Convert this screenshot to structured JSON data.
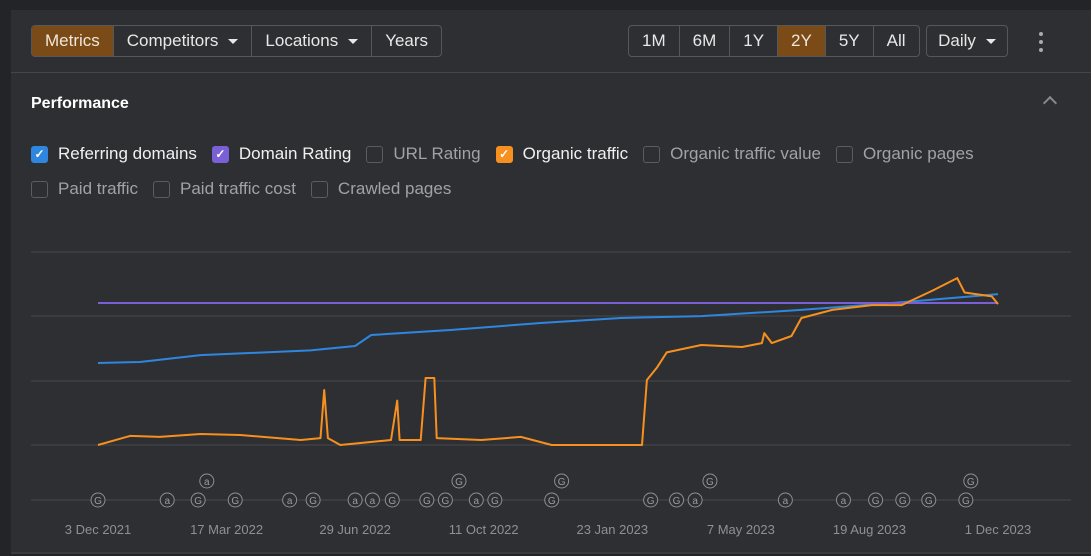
{
  "toolbar": {
    "tabs": [
      {
        "label": "Metrics",
        "active": true
      },
      {
        "label": "Competitors",
        "dropdown": true
      },
      {
        "label": "Locations",
        "dropdown": true
      },
      {
        "label": "Years"
      }
    ],
    "ranges": [
      {
        "label": "1M"
      },
      {
        "label": "6M"
      },
      {
        "label": "1Y"
      },
      {
        "label": "2Y",
        "active": true
      },
      {
        "label": "5Y"
      },
      {
        "label": "All"
      }
    ],
    "interval": "Daily",
    "more_icon": "kebab-icon"
  },
  "section": {
    "title": "Performance",
    "collapse_icon": "chevron-up-icon"
  },
  "metrics": [
    {
      "label": "Referring domains",
      "checked": true,
      "color": "#2f86de"
    },
    {
      "label": "Domain Rating",
      "checked": true,
      "color": "#7b5fd6"
    },
    {
      "label": "URL Rating",
      "checked": false
    },
    {
      "label": "Organic traffic",
      "checked": true,
      "color": "#f7901e"
    },
    {
      "label": "Organic traffic value",
      "checked": false
    },
    {
      "label": "Organic pages",
      "checked": false
    },
    {
      "label": "Paid traffic",
      "checked": false
    },
    {
      "label": "Paid traffic cost",
      "checked": false
    },
    {
      "label": "Crawled pages",
      "checked": false
    }
  ],
  "accent": "#7a4b16",
  "chart_data": {
    "type": "line",
    "grid": true,
    "y_axis_labels": false,
    "note_scale": "relative 0-100",
    "x_ticks": [
      "3 Dec 2021",
      "17 Mar 2022",
      "29 Jun 2022",
      "11 Oct 2022",
      "23 Jan 2023",
      "7 May 2023",
      "19 Aug 2023",
      "1 Dec 2023"
    ],
    "x_range": [
      "2021-12-03",
      "2023-12-01"
    ],
    "ylim": [
      0,
      100
    ],
    "series": [
      {
        "name": "Referring domains",
        "color": "#2f86de",
        "points": [
          [
            "2021-12-03",
            42.5
          ],
          [
            "2022-01-06",
            43
          ],
          [
            "2022-02-24",
            46.6
          ],
          [
            "2022-05-24",
            49
          ],
          [
            "2022-06-29",
            51.3
          ],
          [
            "2022-07-12",
            57
          ],
          [
            "2022-09-14",
            59.6
          ],
          [
            "2022-11-26",
            63.2
          ],
          [
            "2023-01-30",
            65.8
          ],
          [
            "2023-04-05",
            66.8
          ],
          [
            "2023-06-25",
            70
          ],
          [
            "2023-09-14",
            74
          ],
          [
            "2023-12-01",
            78.2
          ]
        ]
      },
      {
        "name": "Domain Rating",
        "color": "#7b5fd6",
        "points": [
          [
            "2021-12-03",
            73.6
          ],
          [
            "2023-12-01",
            73.6
          ]
        ]
      },
      {
        "name": "Organic traffic",
        "color": "#f7901e",
        "points": [
          [
            "2021-12-03",
            0
          ],
          [
            "2021-12-29",
            4.7
          ],
          [
            "2022-01-22",
            4.2
          ],
          [
            "2022-02-24",
            5.7
          ],
          [
            "2022-03-28",
            5.2
          ],
          [
            "2022-05-16",
            2.6
          ],
          [
            "2022-06-01",
            3.6
          ],
          [
            "2022-06-04",
            28.5
          ],
          [
            "2022-06-07",
            3.6
          ],
          [
            "2022-06-17",
            0
          ],
          [
            "2022-07-28",
            2.6
          ],
          [
            "2022-08-02",
            23
          ],
          [
            "2022-08-04",
            2.6
          ],
          [
            "2022-08-21",
            2.6
          ],
          [
            "2022-08-25",
            34.7
          ],
          [
            "2022-09-01",
            34.7
          ],
          [
            "2022-09-03",
            3.6
          ],
          [
            "2022-10-09",
            2.6
          ],
          [
            "2022-11-10",
            4.2
          ],
          [
            "2022-12-05",
            0
          ],
          [
            "2023-01-14",
            0
          ],
          [
            "2023-02-16",
            0
          ],
          [
            "2023-02-20",
            33.7
          ],
          [
            "2023-02-28",
            40
          ],
          [
            "2023-03-08",
            48
          ],
          [
            "2023-04-05",
            51.8
          ],
          [
            "2023-05-08",
            50.8
          ],
          [
            "2023-05-24",
            52.8
          ],
          [
            "2023-05-26",
            58
          ],
          [
            "2023-06-01",
            52.8
          ],
          [
            "2023-06-17",
            56.5
          ],
          [
            "2023-06-25",
            65.8
          ],
          [
            "2023-07-20",
            70
          ],
          [
            "2023-08-21",
            72.5
          ],
          [
            "2023-09-14",
            72.5
          ],
          [
            "2023-10-09",
            80
          ],
          [
            "2023-10-29",
            86.5
          ],
          [
            "2023-11-04",
            79
          ],
          [
            "2023-11-26",
            77
          ],
          [
            "2023-12-01",
            73
          ]
        ]
      }
    ],
    "annotations": [
      [
        "2021-12-03",
        "G"
      ],
      [
        "2022-01-28",
        "a"
      ],
      [
        "2022-02-22",
        "G"
      ],
      [
        "2022-03-01",
        "a"
      ],
      [
        "2022-03-24",
        "G"
      ],
      [
        "2022-05-07",
        "a"
      ],
      [
        "2022-05-26",
        "G"
      ],
      [
        "2022-06-29",
        "a"
      ],
      [
        "2022-07-13",
        "a"
      ],
      [
        "2022-07-29",
        "G"
      ],
      [
        "2022-08-26",
        "G"
      ],
      [
        "2022-09-10",
        "G"
      ],
      [
        "2022-09-21",
        "G"
      ],
      [
        "2022-10-05",
        "a"
      ],
      [
        "2022-10-20",
        "G"
      ],
      [
        "2022-12-05",
        "G"
      ],
      [
        "2022-12-13",
        "G"
      ],
      [
        "2023-02-23",
        "G"
      ],
      [
        "2023-03-16",
        "G"
      ],
      [
        "2023-03-31",
        "a"
      ],
      [
        "2023-04-12",
        "G"
      ],
      [
        "2023-06-12",
        "a"
      ],
      [
        "2023-07-29",
        "a"
      ],
      [
        "2023-08-24",
        "G"
      ],
      [
        "2023-09-15",
        "G"
      ],
      [
        "2023-10-06",
        "G"
      ],
      [
        "2023-11-05",
        "G"
      ],
      [
        "2023-11-09",
        "G"
      ]
    ]
  }
}
